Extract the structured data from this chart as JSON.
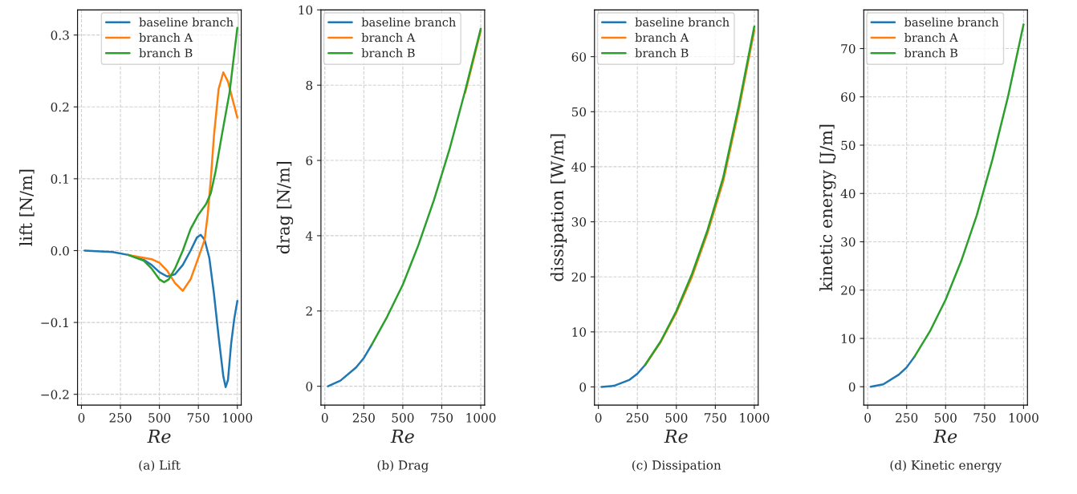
{
  "chart_data": [
    {
      "type": "line",
      "title": "(a) Lift",
      "xlabel": "Re",
      "ylabel": "lift [N/m]",
      "xlim": [
        -25,
        1025
      ],
      "ylim": [
        -0.215,
        0.335
      ],
      "xticks": [
        0,
        250,
        500,
        750,
        1000
      ],
      "yticks": [
        {
          "value": -0.2,
          "label": "−0.2"
        },
        {
          "value": -0.1,
          "label": "−0.1"
        },
        {
          "value": 0.0,
          "label": "0.0"
        },
        {
          "value": 0.1,
          "label": "0.1"
        },
        {
          "value": 0.2,
          "label": "0.2"
        },
        {
          "value": 0.3,
          "label": "0.3"
        }
      ],
      "grid": true,
      "legend": "top right",
      "line_style": "solid",
      "series": [
        {
          "name": "baseline branch",
          "color": "#1f77b4",
          "x": [
            20,
            200,
            300,
            400,
            450,
            500,
            550,
            600,
            650,
            700,
            740,
            765,
            790,
            820,
            850,
            880,
            910,
            925,
            940,
            960,
            980,
            1000
          ],
          "values": [
            0,
            -0.002,
            -0.006,
            -0.013,
            -0.02,
            -0.03,
            -0.036,
            -0.033,
            -0.02,
            0.0,
            0.018,
            0.022,
            0.015,
            -0.01,
            -0.06,
            -0.12,
            -0.175,
            -0.19,
            -0.18,
            -0.13,
            -0.095,
            -0.07
          ]
        },
        {
          "name": "branch A",
          "color": "#ff7f0e",
          "x": [
            300,
            400,
            450,
            500,
            550,
            600,
            650,
            700,
            750,
            790,
            810,
            830,
            850,
            880,
            910,
            940,
            970,
            1000
          ],
          "values": [
            -0.006,
            -0.01,
            -0.012,
            -0.017,
            -0.028,
            -0.045,
            -0.056,
            -0.04,
            -0.01,
            0.015,
            0.05,
            0.1,
            0.16,
            0.225,
            0.248,
            0.235,
            0.21,
            0.185
          ]
        },
        {
          "name": "branch B",
          "color": "#2ca02c",
          "x": [
            300,
            400,
            450,
            500,
            530,
            560,
            600,
            650,
            700,
            750,
            800,
            830,
            860,
            900,
            950,
            1000
          ],
          "values": [
            -0.006,
            -0.014,
            -0.025,
            -0.04,
            -0.044,
            -0.04,
            -0.025,
            0.0,
            0.03,
            0.05,
            0.065,
            0.08,
            0.11,
            0.16,
            0.22,
            0.31
          ]
        }
      ]
    },
    {
      "type": "line",
      "title": "(b) Drag",
      "xlabel": "Re",
      "ylabel": "drag [N/m]",
      "xlim": [
        -25,
        1025
      ],
      "ylim": [
        -0.5,
        10
      ],
      "xticks": [
        0,
        250,
        500,
        750,
        1000
      ],
      "yticks": [
        0,
        2,
        4,
        6,
        8,
        10
      ],
      "grid": true,
      "legend": "top left",
      "line_style": "solid",
      "series": [
        {
          "name": "baseline branch",
          "color": "#1f77b4",
          "x": [
            20,
            100,
            200,
            250,
            300
          ],
          "values": [
            0,
            0.15,
            0.5,
            0.75,
            1.1
          ]
        },
        {
          "name": "branch A",
          "color": "#ff7f0e",
          "x": [
            900,
            1000
          ],
          "values": [
            7.8,
            9.45
          ]
        },
        {
          "name": "branch B",
          "color": "#2ca02c",
          "x": [
            300,
            400,
            500,
            600,
            700,
            800,
            900,
            1000
          ],
          "values": [
            1.1,
            1.85,
            2.7,
            3.75,
            4.95,
            6.3,
            7.85,
            9.5
          ]
        }
      ]
    },
    {
      "type": "line",
      "title": "(c) Dissipation",
      "xlabel": "Re",
      "ylabel": "dissipation [W/m]",
      "xlim": [
        -25,
        1025
      ],
      "ylim": [
        -3.3,
        68.5
      ],
      "xticks": [
        0,
        250,
        500,
        750,
        1000
      ],
      "yticks": [
        0,
        10,
        20,
        30,
        40,
        50,
        60
      ],
      "grid": true,
      "legend": "top left",
      "line_style": "solid",
      "series": [
        {
          "name": "baseline branch",
          "color": "#1f77b4",
          "x": [
            20,
            100,
            200,
            250,
            300
          ],
          "values": [
            0,
            0.2,
            1.3,
            2.4,
            4
          ]
        },
        {
          "name": "branch A",
          "color": "#ff7f0e",
          "x": [
            300,
            400,
            500,
            600,
            700,
            800,
            900,
            1000
          ],
          "values": [
            4,
            8.2,
            13.5,
            20,
            28,
            37.3,
            50.3,
            64.8
          ]
        },
        {
          "name": "branch B",
          "color": "#2ca02c",
          "x": [
            300,
            400,
            500,
            600,
            700,
            800,
            900,
            1000
          ],
          "values": [
            4,
            8.3,
            13.8,
            20.5,
            28.5,
            38,
            51,
            65.5
          ]
        }
      ]
    },
    {
      "type": "line",
      "title": "(d) Kinetic energy",
      "xlabel": "Re",
      "ylabel": "kinetic energy [J/m]",
      "xlim": [
        -25,
        1025
      ],
      "ylim": [
        -3.8,
        78
      ],
      "xticks": [
        0,
        250,
        500,
        750,
        1000
      ],
      "yticks": [
        0,
        10,
        20,
        30,
        40,
        50,
        60,
        70
      ],
      "grid": true,
      "legend": "top left",
      "line_style": "solid",
      "series": [
        {
          "name": "baseline branch",
          "color": "#1f77b4",
          "x": [
            20,
            100,
            200,
            250,
            300
          ],
          "values": [
            0,
            0.5,
            2.5,
            4,
            6.2
          ]
        },
        {
          "name": "branch A",
          "color": "#ff7f0e"
        },
        {
          "name": "branch B",
          "color": "#2ca02c",
          "x": [
            300,
            400,
            500,
            600,
            700,
            800,
            900,
            1000
          ],
          "values": [
            6.2,
            11.5,
            18,
            26,
            35.5,
            47,
            60,
            75
          ]
        }
      ]
    }
  ]
}
